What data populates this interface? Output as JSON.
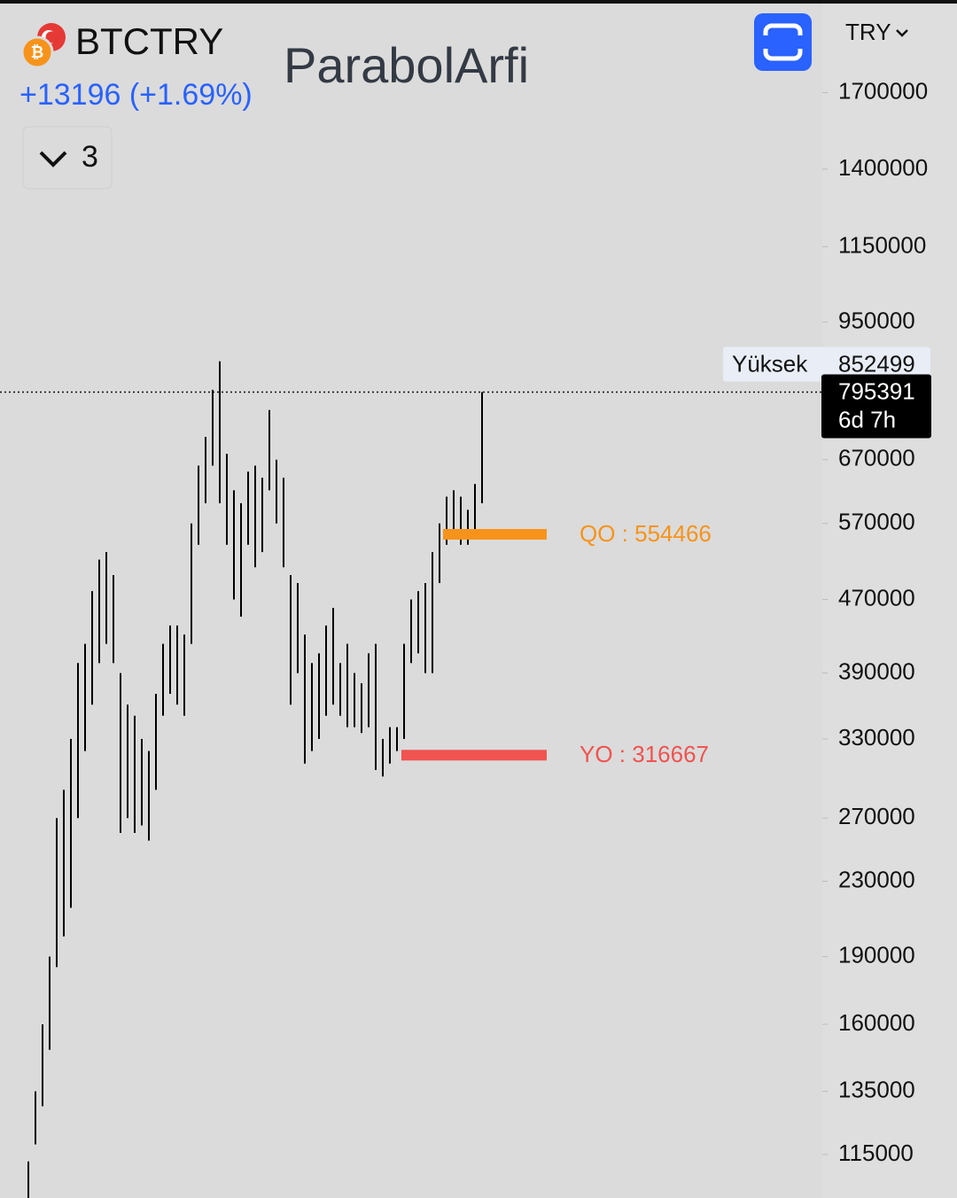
{
  "chart_data": {
    "type": "ohlc",
    "symbol": "BTCTRY",
    "change": "+13196 (+1.69%)",
    "indicator_count": "3",
    "watermark": "ParabolArfi",
    "currency": "TRY",
    "log_scale": true,
    "bar_color": "#000000",
    "ylim": [
      103000,
      2150000
    ],
    "yticks": [
      1700000,
      1400000,
      1150000,
      950000,
      670000,
      570000,
      470000,
      390000,
      330000,
      270000,
      230000,
      190000,
      160000,
      135000,
      115000
    ],
    "high": [
      113000,
      135000,
      160000,
      190000,
      270000,
      290000,
      330000,
      400000,
      420000,
      480000,
      520000,
      530000,
      500000,
      390000,
      360000,
      350000,
      330000,
      320000,
      370000,
      420000,
      440000,
      440000,
      430000,
      570000,
      660000,
      710000,
      800000,
      860000,
      680000,
      620000,
      600000,
      650000,
      660000,
      640000,
      760000,
      670000,
      640000,
      500000,
      490000,
      430000,
      400000,
      410000,
      440000,
      460000,
      400000,
      420000,
      390000,
      380000,
      410000,
      420000,
      330000,
      340000,
      340000,
      420000,
      470000,
      480000,
      490000,
      530000,
      570000,
      610000,
      620000,
      610000,
      590000,
      630000,
      795391
    ],
    "low": [
      103000,
      118000,
      130000,
      150000,
      185000,
      200000,
      215000,
      270000,
      320000,
      360000,
      400000,
      420000,
      400000,
      260000,
      270000,
      260000,
      265000,
      255000,
      290000,
      350000,
      370000,
      360000,
      350000,
      420000,
      540000,
      600000,
      660000,
      600000,
      540000,
      470000,
      450000,
      540000,
      510000,
      530000,
      620000,
      570000,
      510000,
      360000,
      390000,
      310000,
      320000,
      330000,
      350000,
      360000,
      350000,
      340000,
      340000,
      335000,
      340000,
      305000,
      300000,
      310000,
      320000,
      330000,
      400000,
      410000,
      390000,
      390000,
      490000,
      540000,
      550000,
      540000,
      540000,
      560000,
      600000
    ],
    "last_price": 795391,
    "countdown": "6d 7h",
    "high_marker": {
      "label": "Yüksek",
      "value": 852499
    },
    "levels": [
      {
        "label": "QO : 554466",
        "value": 554466,
        "color": "#f7931a"
      },
      {
        "label": "YO : 316667",
        "value": 316667,
        "color": "#f05350"
      }
    ]
  }
}
